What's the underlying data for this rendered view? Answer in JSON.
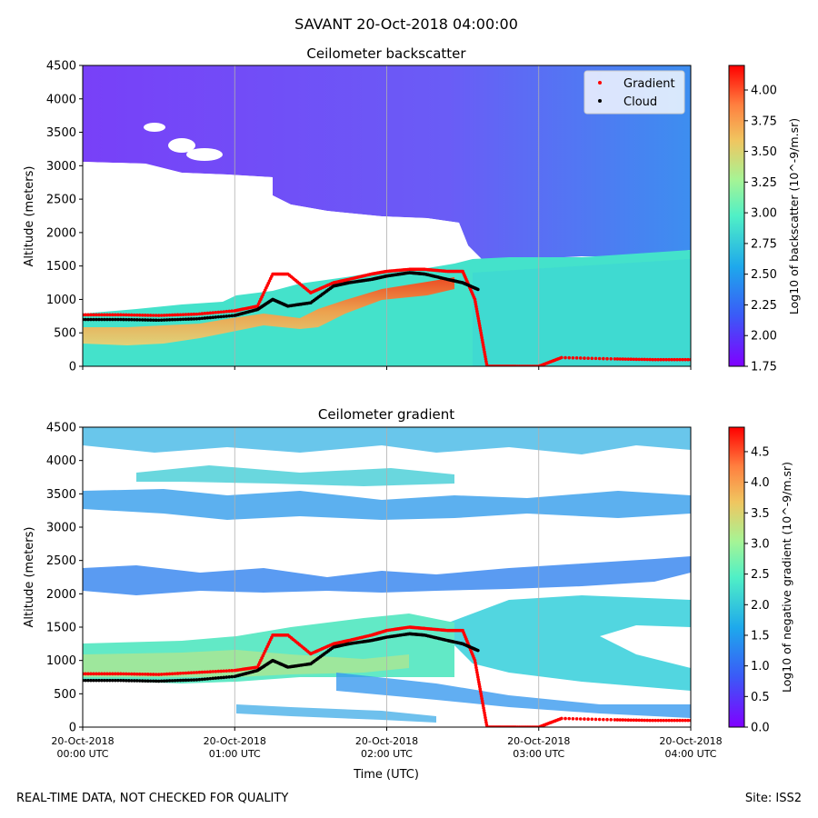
{
  "figure": {
    "title": "SAVANT 20-Oct-2018 04:00:00",
    "footer_left": "REAL-TIME DATA, NOT CHECKED FOR QUALITY",
    "footer_right": "Site: ISS2"
  },
  "chart_data": [
    {
      "type": "heatmap",
      "title": "Ceilometer backscatter",
      "xlabel": "",
      "ylabel": "Altitude (meters)",
      "xlim_hours_utc": [
        0,
        4
      ],
      "ylim": [
        0,
        4500
      ],
      "yticks": [
        0,
        500,
        1000,
        1500,
        2000,
        2500,
        3000,
        3500,
        4000,
        4500
      ],
      "xticks_hours": [
        0,
        1,
        2,
        3,
        4
      ],
      "xtick_labels": [
        "",
        "",
        "",
        "",
        ""
      ],
      "grid": "vertical",
      "colorbar": {
        "label": "Log10 of backscatter (10^-9/m.sr)",
        "range": [
          1.75,
          4.2
        ],
        "ticks": [
          1.75,
          2.0,
          2.25,
          2.5,
          2.75,
          3.0,
          3.25,
          3.5,
          3.75,
          4.0
        ],
        "tick_labels": [
          "1.75",
          "2.00",
          "2.25",
          "2.50",
          "2.75",
          "3.00",
          "3.25",
          "3.50",
          "3.75",
          "4.00"
        ],
        "colormap": "rainbow"
      },
      "legend": {
        "position": "top-right",
        "entries": [
          {
            "label": "Gradient",
            "color": "#ff0000"
          },
          {
            "label": "Cloud",
            "color": "#000000"
          }
        ]
      },
      "series": [
        {
          "name": "Gradient",
          "color": "#ff0000",
          "x_hours": [
            0.0,
            0.25,
            0.5,
            0.75,
            1.0,
            1.15,
            1.25,
            1.35,
            1.5,
            1.65,
            1.75,
            1.9,
            2.0,
            2.15,
            2.25,
            2.4,
            2.5,
            2.58,
            2.62,
            2.66,
            2.75,
            2.85,
            3.0,
            3.15,
            3.5,
            3.75,
            4.0
          ],
          "altitude_m": [
            770,
            770,
            760,
            780,
            830,
            900,
            1380,
            1380,
            1100,
            1250,
            1300,
            1380,
            1420,
            1450,
            1450,
            1420,
            1420,
            1000,
            500,
            0,
            0,
            0,
            0,
            130,
            110,
            100,
            100
          ]
        },
        {
          "name": "Cloud",
          "color": "#000000",
          "x_hours": [
            0.0,
            0.25,
            0.5,
            0.75,
            1.0,
            1.15,
            1.25,
            1.35,
            1.5,
            1.65,
            1.75,
            1.9,
            2.0,
            2.15,
            2.25,
            2.4,
            2.5,
            2.6
          ],
          "altitude_m": [
            700,
            700,
            690,
            710,
            760,
            850,
            1000,
            900,
            950,
            1200,
            1250,
            1300,
            1350,
            1400,
            1380,
            1300,
            1250,
            1150
          ]
        }
      ]
    },
    {
      "type": "heatmap",
      "title": "Ceilometer gradient",
      "xlabel": "Time (UTC)",
      "ylabel": "Altitude (meters)",
      "xlim_hours_utc": [
        0,
        4
      ],
      "ylim": [
        0,
        4500
      ],
      "yticks": [
        0,
        500,
        1000,
        1500,
        2000,
        2500,
        3000,
        3500,
        4000,
        4500
      ],
      "xticks_hours": [
        0,
        1,
        2,
        3,
        4
      ],
      "xtick_labels": [
        [
          "20-Oct-2018",
          "00:00 UTC"
        ],
        [
          "20-Oct-2018",
          "01:00 UTC"
        ],
        [
          "20-Oct-2018",
          "02:00 UTC"
        ],
        [
          "20-Oct-2018",
          "03:00 UTC"
        ],
        [
          "20-Oct-2018",
          "04:00 UTC"
        ]
      ],
      "grid": "vertical",
      "colorbar": {
        "label": "Log10 of negative gradient (10^-9/m.sr)",
        "range": [
          0.0,
          4.9
        ],
        "ticks": [
          0.0,
          0.5,
          1.0,
          1.5,
          2.0,
          2.5,
          3.0,
          3.5,
          4.0,
          4.5
        ],
        "tick_labels": [
          "0.0",
          "0.5",
          "1.0",
          "1.5",
          "2.0",
          "2.5",
          "3.0",
          "3.5",
          "4.0",
          "4.5"
        ],
        "colormap": "rainbow"
      },
      "series": [
        {
          "name": "Gradient",
          "color": "#ff0000",
          "x_hours": [
            0.0,
            0.25,
            0.5,
            0.75,
            1.0,
            1.15,
            1.25,
            1.35,
            1.5,
            1.65,
            1.75,
            1.9,
            2.0,
            2.15,
            2.25,
            2.4,
            2.5,
            2.58,
            2.62,
            2.66,
            2.75,
            2.85,
            3.0,
            3.15,
            3.5,
            3.75,
            4.0
          ],
          "altitude_m": [
            800,
            800,
            790,
            820,
            850,
            900,
            1380,
            1380,
            1100,
            1250,
            1300,
            1380,
            1450,
            1500,
            1480,
            1450,
            1450,
            1000,
            500,
            0,
            0,
            0,
            0,
            130,
            110,
            100,
            100
          ]
        },
        {
          "name": "Cloud",
          "color": "#000000",
          "x_hours": [
            0.0,
            0.25,
            0.5,
            0.75,
            1.0,
            1.15,
            1.25,
            1.35,
            1.5,
            1.65,
            1.75,
            1.9,
            2.0,
            2.15,
            2.25,
            2.4,
            2.5,
            2.6
          ],
          "altitude_m": [
            700,
            700,
            690,
            710,
            760,
            850,
            1000,
            900,
            950,
            1200,
            1250,
            1300,
            1350,
            1400,
            1380,
            1300,
            1250,
            1150
          ]
        }
      ]
    }
  ]
}
